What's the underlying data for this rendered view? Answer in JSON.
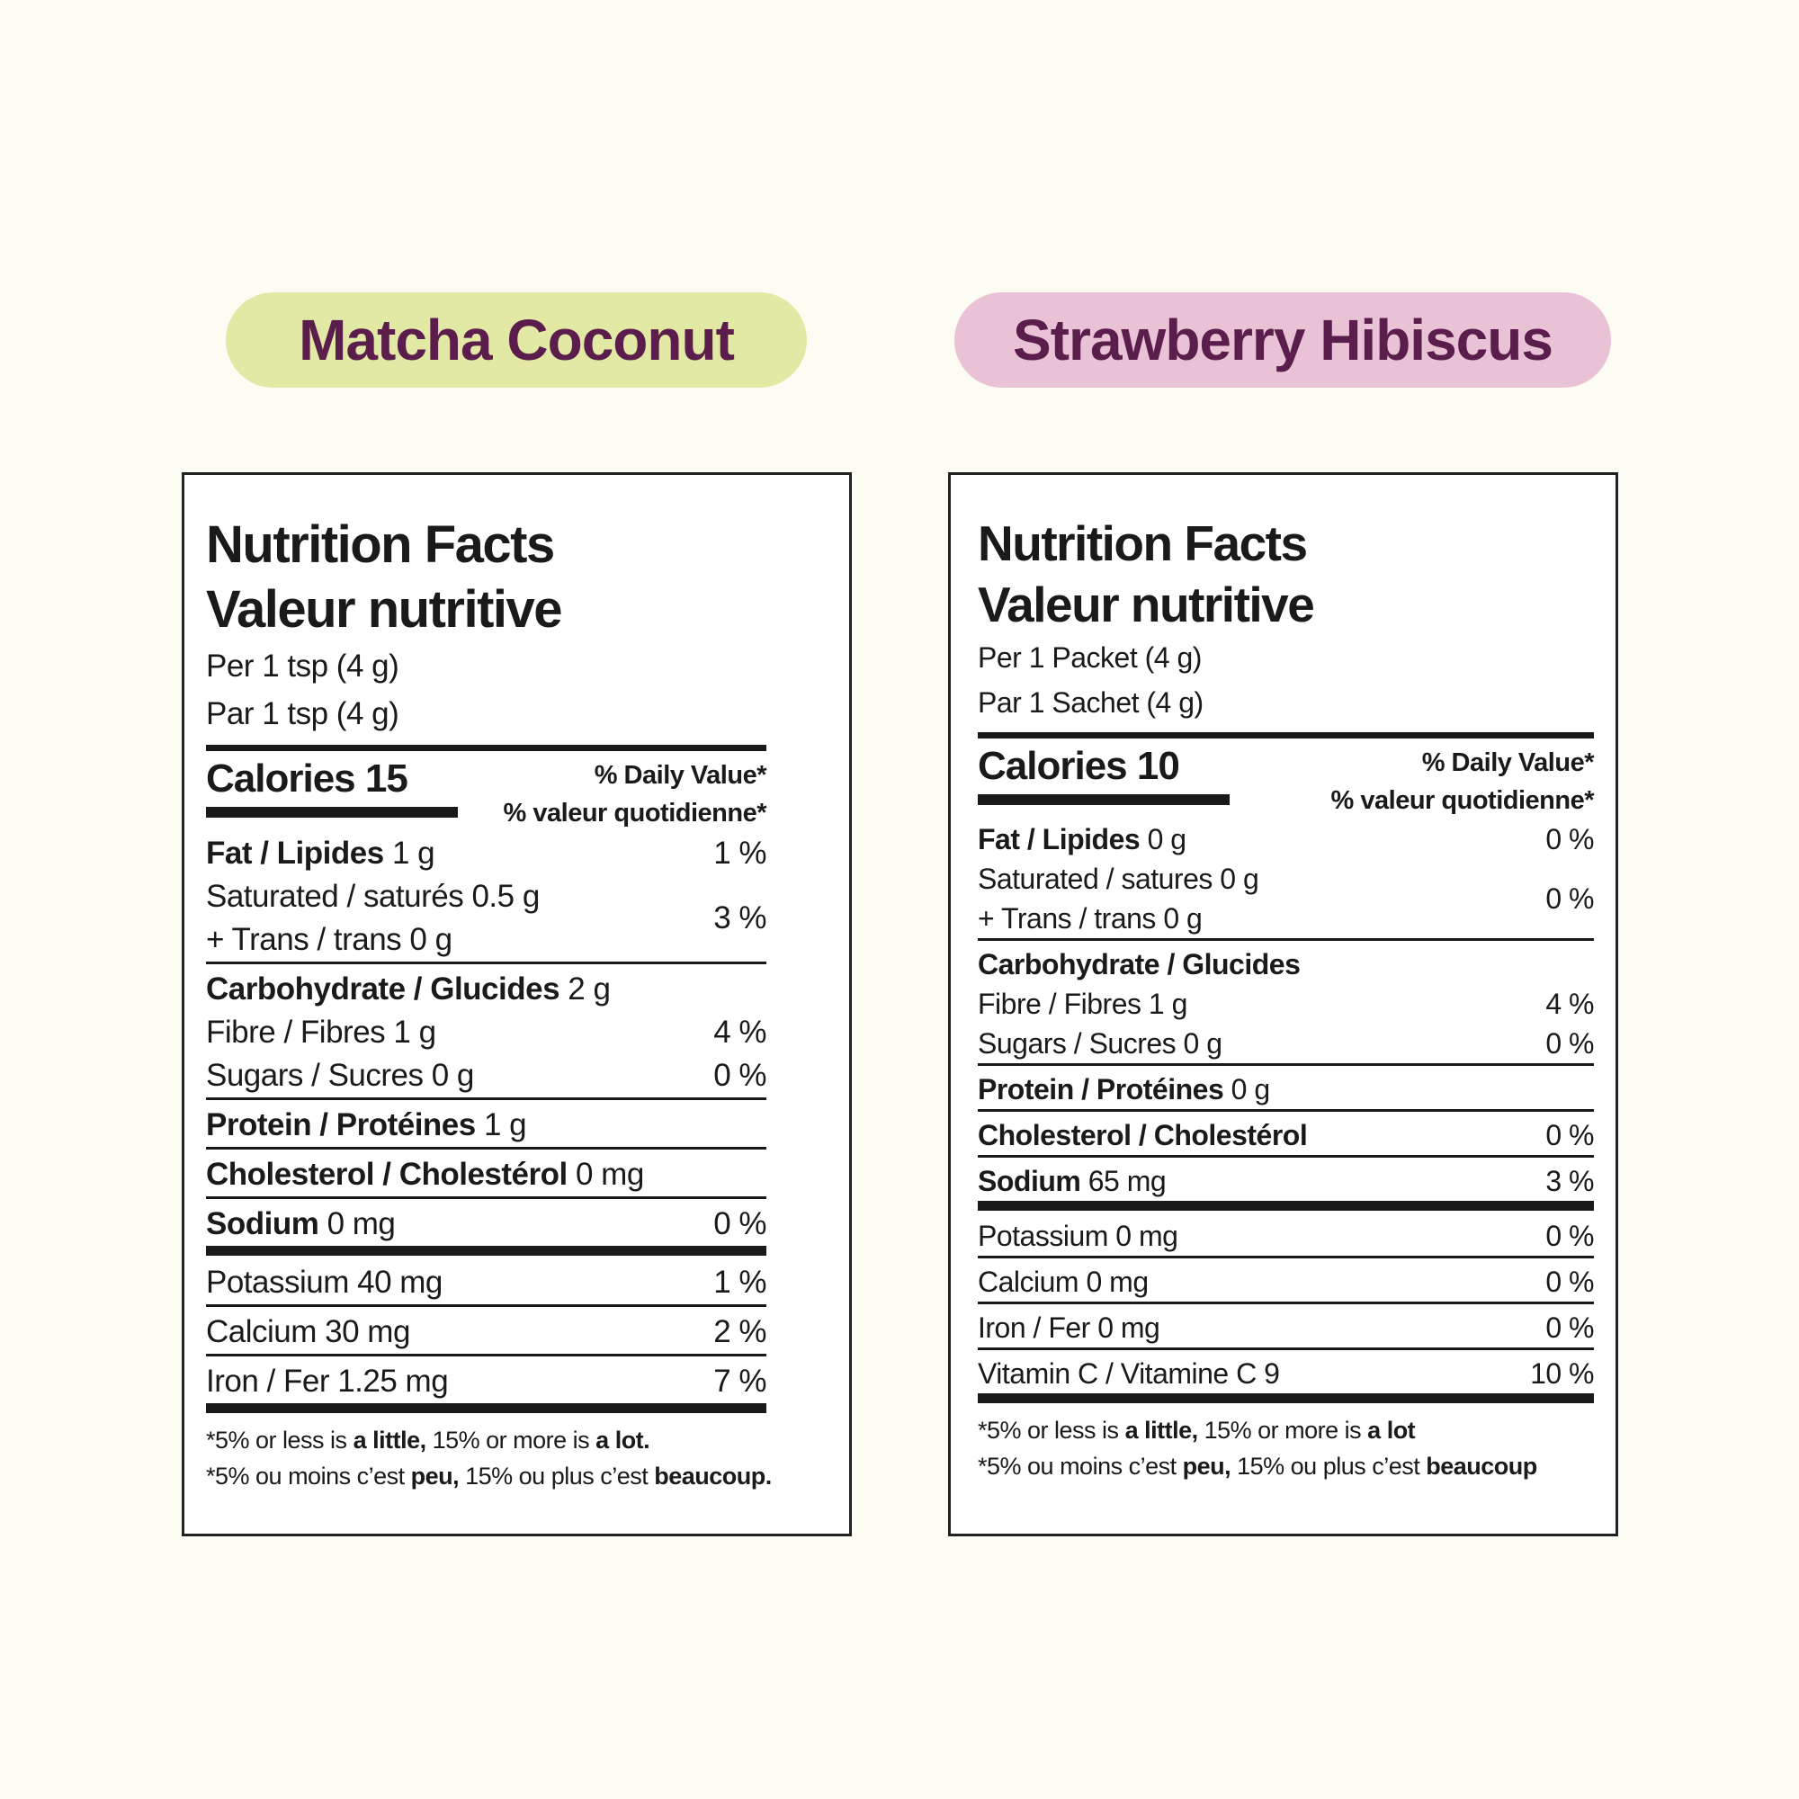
{
  "products": [
    {
      "name": "Matcha Coconut",
      "label": {
        "title_en": "Nutrition Facts",
        "title_fr": "Valeur nutritive",
        "serving_en": "Per 1 tsp (4 g)",
        "serving_fr": "Par 1 tsp (4 g)",
        "calories": "Calories 15",
        "dv_en": "% Daily Value*",
        "dv_fr": "% valeur quotidienne*",
        "rows": [
          {
            "label": "Fat / Lipides",
            "amount": "1 g",
            "dv": "1 %",
            "bold": true
          },
          {
            "lines": [
              "Saturated / saturés 0.5 g",
              "+ Trans / trans 0 g"
            ],
            "dv": "3 %",
            "rule": "thin"
          },
          {
            "label": "Carbohydrate / Glucides",
            "amount": "2 g",
            "bold": true
          },
          {
            "label": "Fibre / Fibres 1 g",
            "dv": "4 %"
          },
          {
            "label": "Sugars / Sucres 0 g",
            "dv": "0 %",
            "rule": "thin"
          },
          {
            "label": "Protein / Protéines",
            "amount": "1 g",
            "bold": true,
            "rule": "thin"
          },
          {
            "label": "Cholesterol / Cholestérol",
            "amount": "0 mg",
            "bold": true,
            "rule": "thin"
          },
          {
            "label": "Sodium",
            "amount": "0 mg",
            "dv": "0 %",
            "bold": true,
            "rule": "thick"
          },
          {
            "label": "Potassium 40 mg",
            "dv": "1 %",
            "rule": "thin"
          },
          {
            "label": "Calcium 30 mg",
            "dv": "2 %",
            "rule": "thin"
          },
          {
            "label": "Iron / Fer 1.25 mg",
            "dv": "7 %",
            "rule": "thick"
          }
        ],
        "footnote_en": [
          "*5% or less is ",
          "a little,",
          " 15% or more is ",
          "a lot."
        ],
        "footnote_fr": [
          "*5% ou moins c’est ",
          "peu,",
          " 15% ou plus c’est ",
          "beaucoup."
        ]
      }
    },
    {
      "name": "Strawberry Hibiscus",
      "label": {
        "title_en": "Nutrition Facts",
        "title_fr": "Valeur nutritive",
        "serving_en": "Per 1 Packet (4 g)",
        "serving_fr": "Par 1 Sachet (4 g)",
        "calories": "Calories 10",
        "dv_en": "% Daily Value*",
        "dv_fr": "% valeur quotidienne*",
        "rows": [
          {
            "label": "Fat / Lipides",
            "amount": "0 g",
            "dv": "0 %",
            "bold": true
          },
          {
            "lines": [
              "Saturated / satures 0 g",
              "+ Trans / trans 0 g"
            ],
            "dv": "0 %",
            "rule": "thin"
          },
          {
            "label": "Carbohydrate / Glucides",
            "bold": true
          },
          {
            "label": "Fibre / Fibres 1 g",
            "dv": "4 %"
          },
          {
            "label": "Sugars / Sucres 0 g",
            "dv": "0 %",
            "rule": "thin"
          },
          {
            "label": "Protein / Protéines",
            "amount": "0 g",
            "bold": true,
            "rule": "thin"
          },
          {
            "label": "Cholesterol / Cholestérol",
            "dv": "0 %",
            "bold": true,
            "rule": "thin"
          },
          {
            "label": "Sodium",
            "amount": "65 mg",
            "dv": "3 %",
            "bold": true,
            "rule": "thick"
          },
          {
            "label": "Potassium 0 mg",
            "dv": "0 %",
            "rule": "thin"
          },
          {
            "label": "Calcium 0 mg",
            "dv": "0 %",
            "rule": "thin"
          },
          {
            "label": "Iron / Fer 0 mg",
            "dv": "0 %",
            "rule": "thin"
          },
          {
            "label": "Vitamin C / Vitamine C 9",
            "dv": "10 %",
            "rule": "thick"
          }
        ],
        "footnote_en": [
          "*5% or less is ",
          "a little,",
          " 15% or more is ",
          "a lot"
        ],
        "footnote_fr": [
          "*5% ou moins c’est ",
          "peu,",
          " 15% ou plus c’est ",
          "beaucoup"
        ]
      }
    }
  ]
}
